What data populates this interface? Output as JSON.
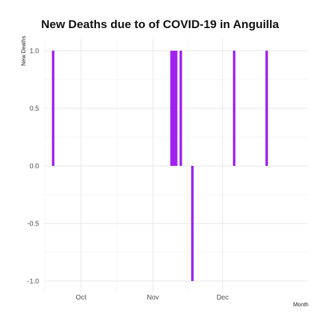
{
  "chart_data": {
    "type": "bar",
    "title": "New Deaths due to of COVID-19 in Anguilla",
    "xlabel": "Month",
    "ylabel": "New Deaths",
    "x_tick_labels": [
      {
        "label": "Oct",
        "date": "2020-10-01"
      },
      {
        "label": "Nov",
        "date": "2020-11-01"
      },
      {
        "label": "Dec",
        "date": "2020-12-01"
      }
    ],
    "y_ticks": [
      1.0,
      0.5,
      0.0,
      -0.5,
      -1.0
    ],
    "y_tick_labels": [
      "1.0",
      "0.5",
      "0.0",
      "-0.5",
      "-1.0"
    ],
    "ylim": [
      -1,
      1
    ],
    "xlim": [
      "2020-09-15",
      "2021-01-07"
    ],
    "bar_color": "#a020f0",
    "grid": true,
    "x": [
      "2020-09-19",
      "2020-11-09",
      "2020-11-10",
      "2020-11-11",
      "2020-11-13",
      "2020-11-18",
      "2020-12-06",
      "2020-12-20"
    ],
    "values": [
      1,
      1,
      1,
      1,
      1,
      -1,
      1,
      1
    ]
  }
}
